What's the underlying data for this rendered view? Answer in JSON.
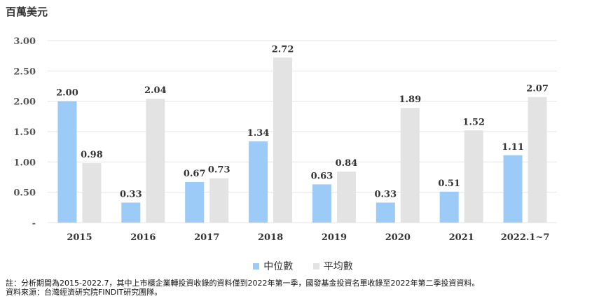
{
  "chart_data": {
    "type": "bar",
    "unit_label": "百萬美元",
    "categories": [
      "2015",
      "2016",
      "2017",
      "2018",
      "2019",
      "2020",
      "2021",
      "2022.1~7"
    ],
    "series": [
      {
        "name": "中位數",
        "values": [
          2.0,
          0.33,
          0.67,
          1.34,
          0.63,
          0.33,
          0.51,
          1.11
        ],
        "color": "#9CCBF7"
      },
      {
        "name": "平均數",
        "values": [
          0.98,
          2.04,
          0.73,
          2.72,
          0.84,
          1.89,
          1.52,
          2.07
        ],
        "color": "#E3E3E3"
      }
    ],
    "ylim": [
      0,
      3.0
    ],
    "yticks": [
      "-",
      "0.50",
      "1.00",
      "1.50",
      "2.00",
      "2.50",
      "3.00"
    ],
    "grid": true,
    "legend_position": "bottom"
  },
  "notes": {
    "line1": "註：分析期間為2015-2022.7，其中上市櫃企業轉投資收錄的資料僅到2022年第一季，國發基金投資名單收錄至2022年第二季投資資料。",
    "line2": "資料來源：台灣經濟研究院FINDIT研究團隊。"
  }
}
